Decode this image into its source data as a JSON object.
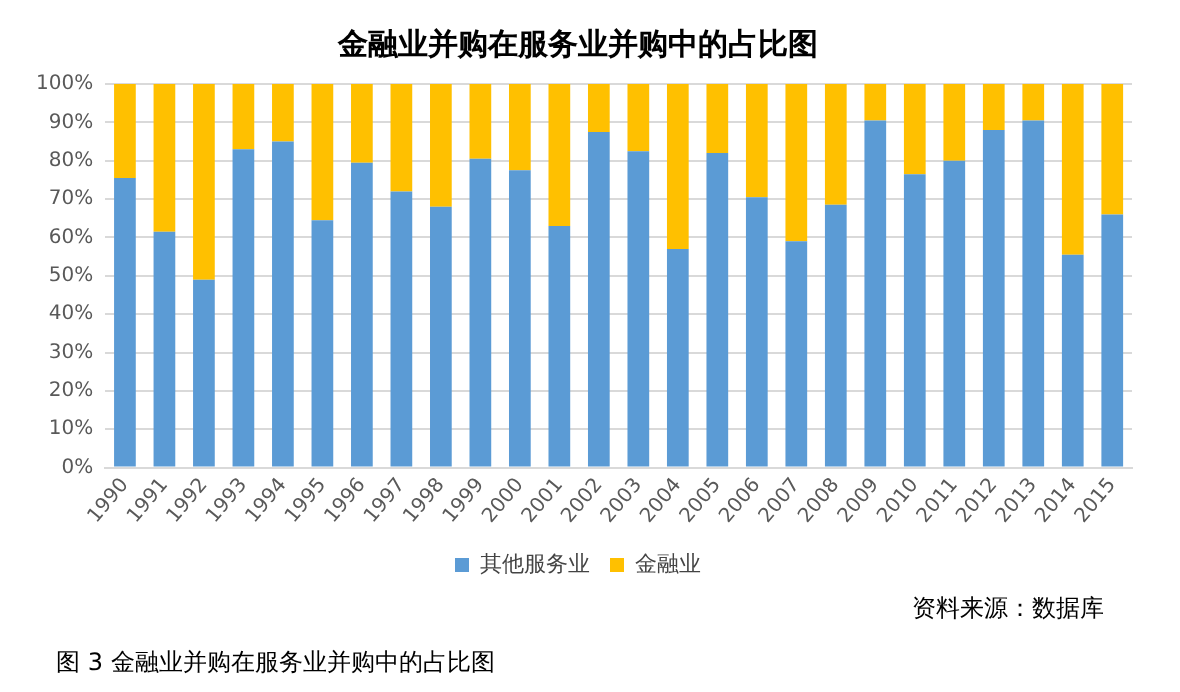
{
  "chart_data": {
    "type": "bar",
    "title": "金融业并购在服务业并购中的占比图",
    "categories": [
      "1990",
      "1991",
      "1992",
      "1993",
      "1994",
      "1995",
      "1996",
      "1997",
      "1998",
      "1999",
      "2000",
      "2001",
      "2002",
      "2003",
      "2004",
      "2005",
      "2006",
      "2007",
      "2008",
      "2009",
      "2010",
      "2011",
      "2012",
      "2013",
      "2014",
      "2015"
    ],
    "series": [
      {
        "name": "其他服务业",
        "color": "#5b9bd5",
        "values": [
          75.5,
          61.5,
          49,
          83,
          85,
          64.5,
          79.5,
          72,
          68,
          80.5,
          77.5,
          63,
          87.5,
          82.5,
          57,
          82,
          70.5,
          59,
          68.5,
          90.5,
          76.5,
          80,
          88,
          90.5,
          55.5,
          66
        ]
      },
      {
        "name": "金融业",
        "color": "#ffc000",
        "values": [
          24.5,
          38.5,
          51,
          17,
          15,
          35.5,
          20.5,
          28,
          32,
          19.5,
          22.5,
          37,
          12.5,
          17.5,
          43,
          18,
          29.5,
          41,
          31.5,
          9.5,
          23.5,
          20,
          12,
          9.5,
          44.5,
          34
        ]
      }
    ],
    "stacked": true,
    "ylim": [
      0,
      100
    ],
    "yticks": [
      {
        "value": 0,
        "label": "0%"
      },
      {
        "value": 10,
        "label": "10%"
      },
      {
        "value": 20,
        "label": "20%"
      },
      {
        "value": 30,
        "label": "30%"
      },
      {
        "value": 40,
        "label": "40%"
      },
      {
        "value": 50,
        "label": "50%"
      },
      {
        "value": 60,
        "label": "60%"
      },
      {
        "value": 70,
        "label": "70%"
      },
      {
        "value": 80,
        "label": "80%"
      },
      {
        "value": 90,
        "label": "90%"
      },
      {
        "value": 100,
        "label": "100%"
      }
    ],
    "grid": "y",
    "legend": "bottom",
    "annotations": [
      "资料来源：数据库",
      "图 3 金融业并购在服务业并购中的占比图"
    ]
  }
}
